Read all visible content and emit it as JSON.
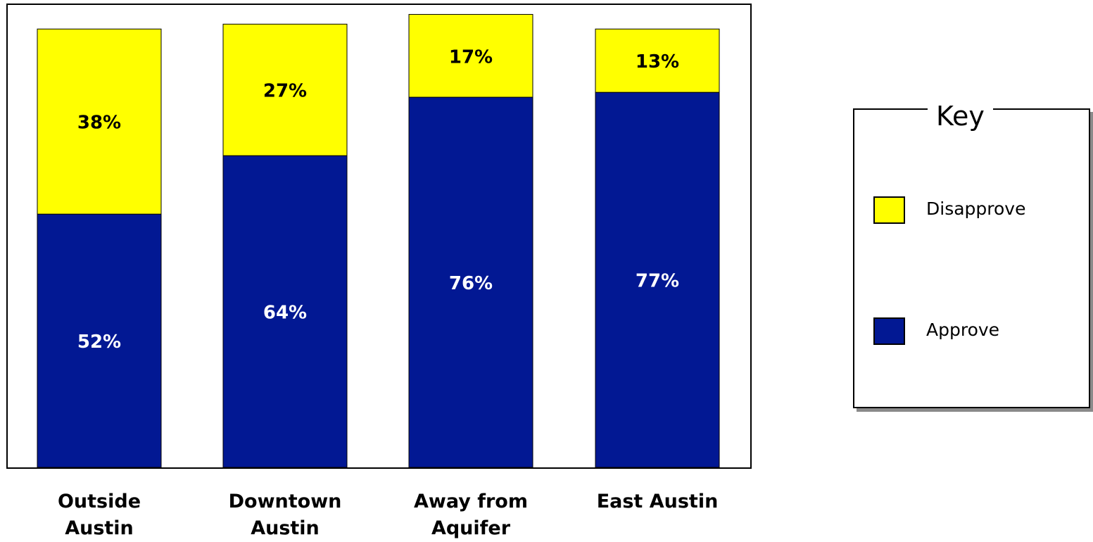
{
  "chart_data": {
    "type": "bar",
    "stacked": true,
    "categories": [
      "Outside Austin",
      "Downtown Austin",
      "Away from Aquifer",
      "East Austin"
    ],
    "category_lines": [
      [
        "Outside Austin"
      ],
      [
        "Downtown",
        "Austin"
      ],
      [
        "Away from",
        "Aquifer"
      ],
      [
        "East Austin"
      ]
    ],
    "series": [
      {
        "name": "Approve",
        "values": [
          52,
          64,
          76,
          77
        ],
        "labels": [
          "52%",
          "64%",
          "76%",
          "77%"
        ],
        "color": "#021893",
        "label_color": "#ffffff"
      },
      {
        "name": "Disapprove",
        "values": [
          38,
          27,
          17,
          13
        ],
        "labels": [
          "38%",
          "27%",
          "17%",
          "13%"
        ],
        "color": "#ffff00",
        "label_color": "#000000"
      }
    ],
    "ylim": [
      0,
      100
    ],
    "grid": false,
    "legend": {
      "title": "Key",
      "placement": "right",
      "order": [
        "Disapprove",
        "Approve"
      ]
    }
  }
}
